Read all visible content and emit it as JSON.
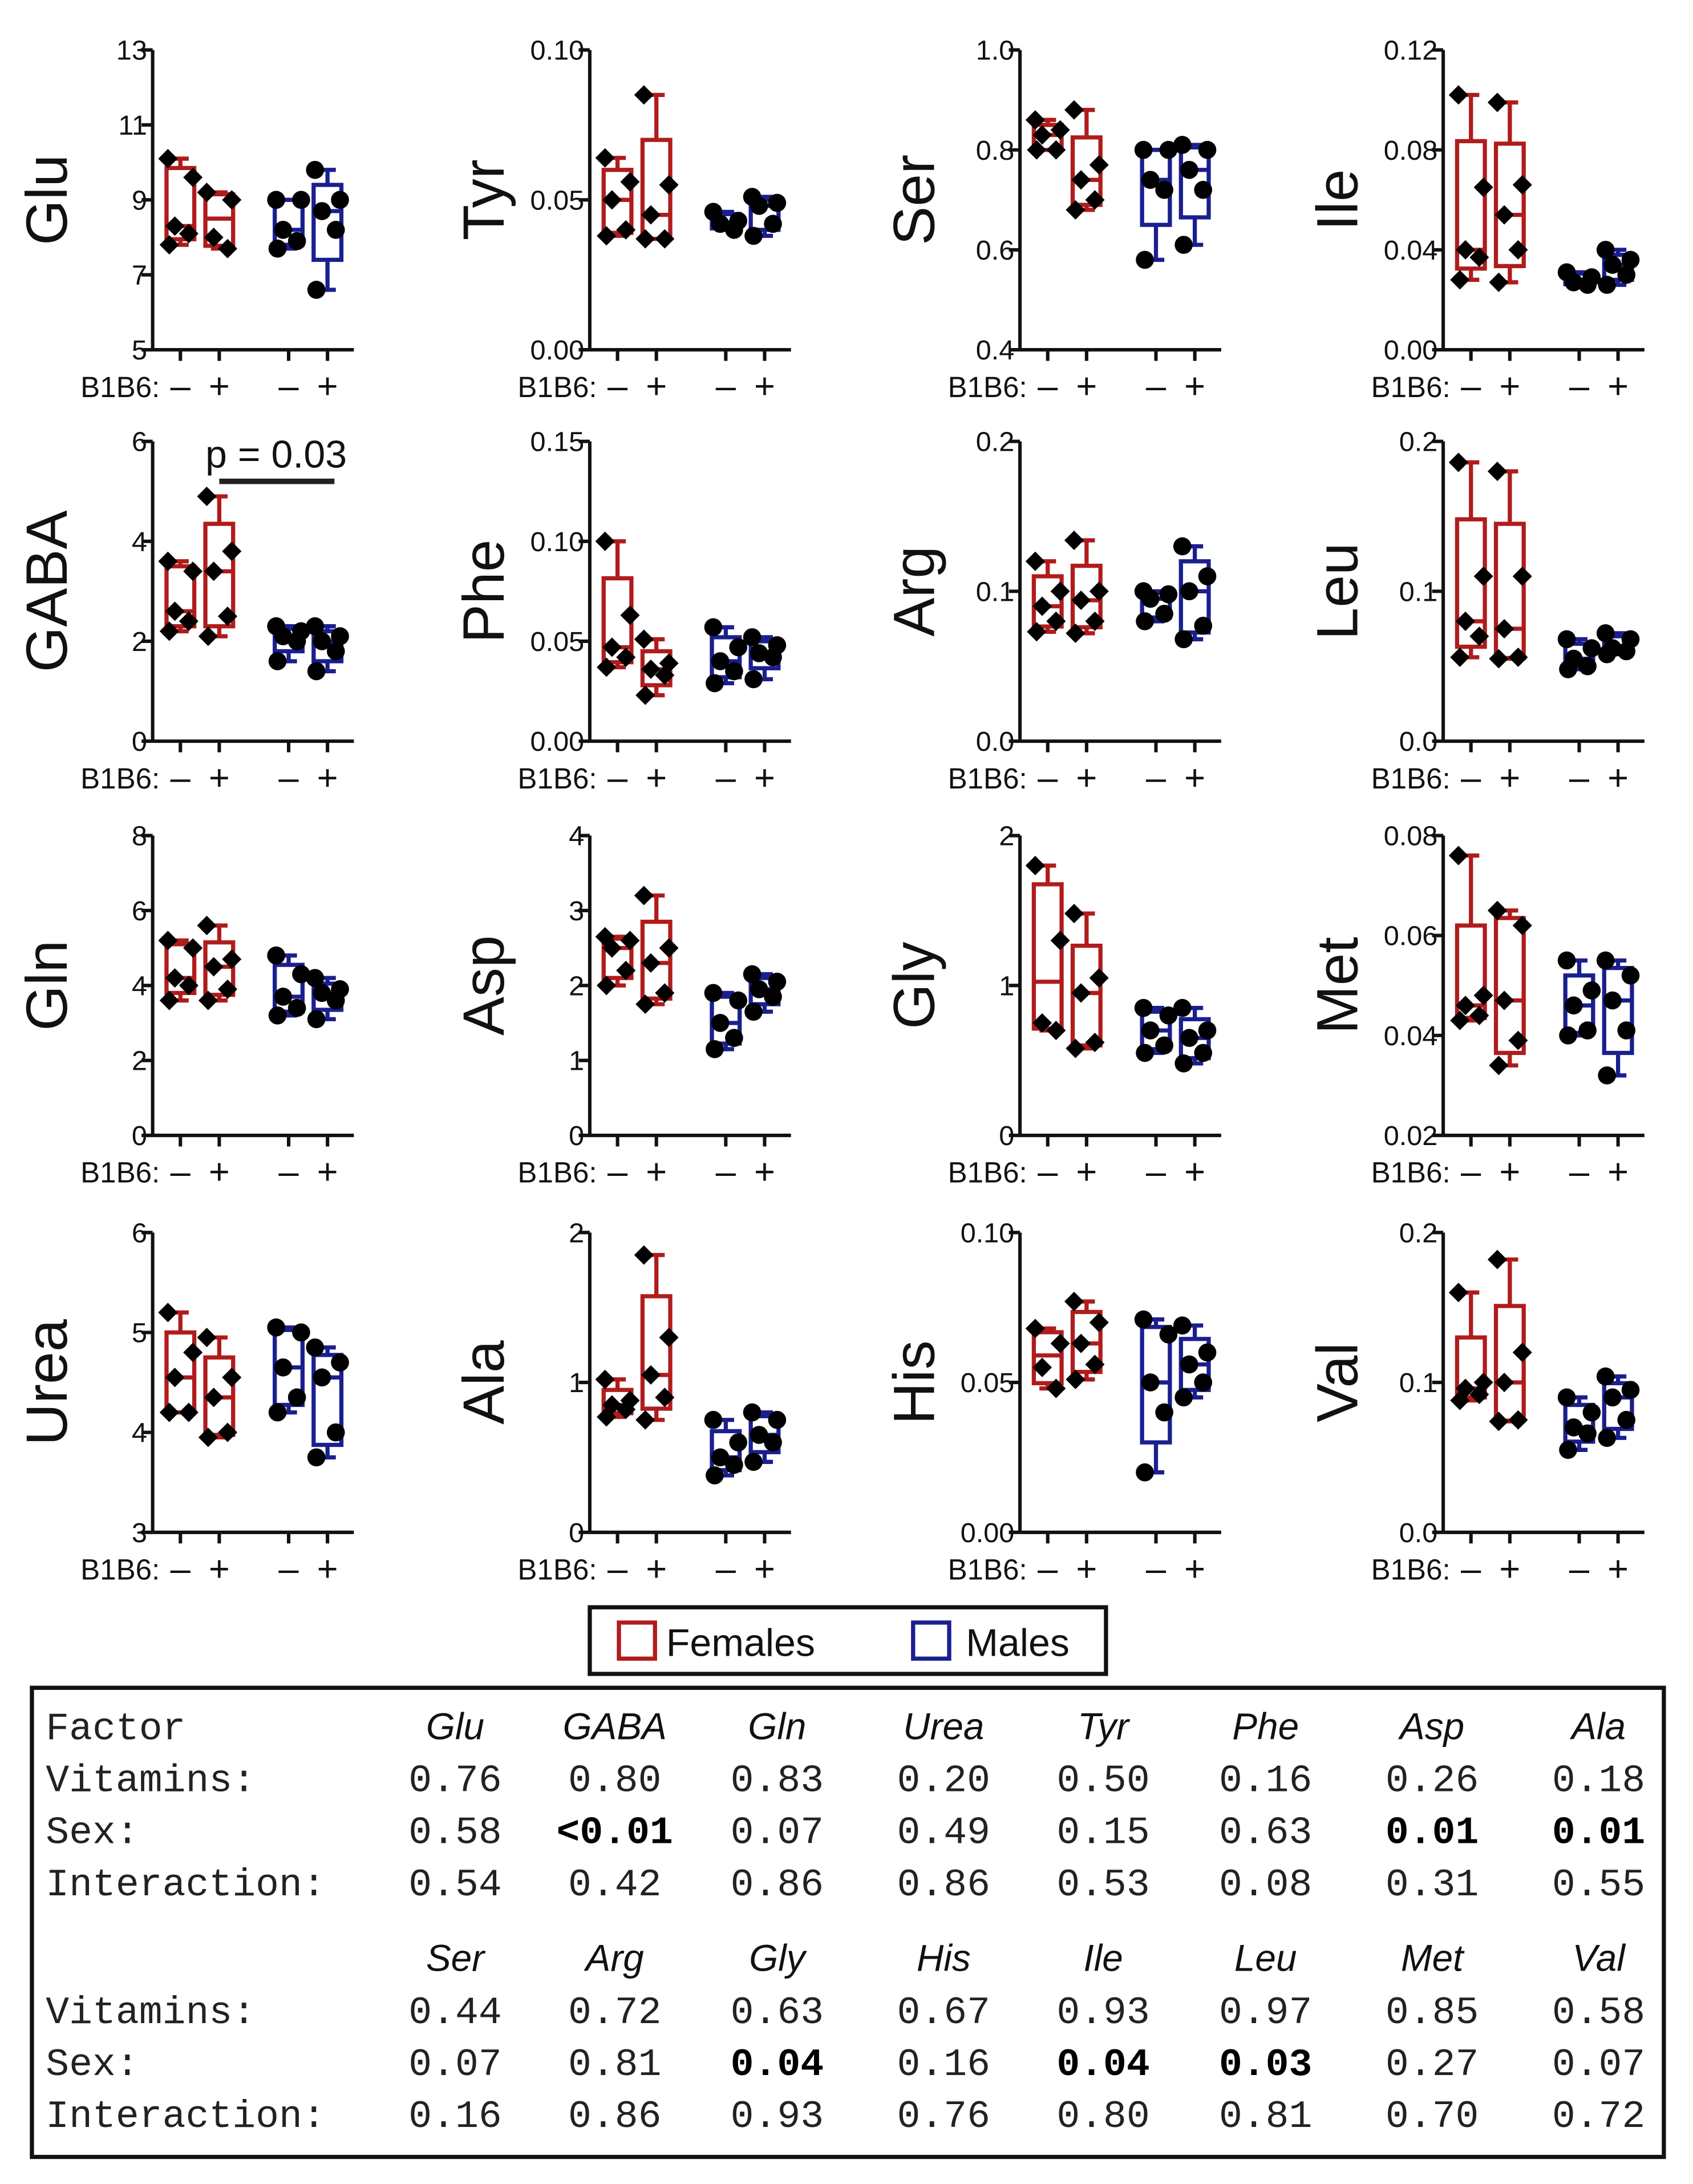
{
  "chart_data": {
    "type": "box",
    "group_label": "B1B6:",
    "group_ticks": [
      "–",
      "+",
      "–",
      "+"
    ],
    "colors": {
      "Females": "#b01c1c",
      "Males": "#1a1f8f"
    },
    "legend": {
      "entries": [
        "Females",
        "Males"
      ],
      "placement": "bottom-center"
    },
    "panels": [
      {
        "name": "Glu",
        "ylim": [
          5,
          13
        ],
        "ticks": [
          "5",
          "7",
          "9",
          "11",
          "13"
        ],
        "groups": [
          [
            10.1,
            9.6,
            8.3,
            8.1,
            7.8
          ],
          [
            9.2,
            9.0,
            8.0,
            7.7
          ],
          [
            9.0,
            9.0,
            8.2,
            7.9,
            7.7
          ],
          [
            9.8,
            9.0,
            8.7,
            8.2,
            6.6
          ]
        ]
      },
      {
        "name": "Tyr",
        "ylim": [
          0,
          0.1
        ],
        "ticks": [
          "0.00",
          "0.05",
          "0.10"
        ],
        "groups": [
          [
            0.064,
            0.056,
            0.05,
            0.04,
            0.038
          ],
          [
            0.085,
            0.055,
            0.045,
            0.037,
            0.037
          ],
          [
            0.046,
            0.043,
            0.042,
            0.04
          ],
          [
            0.051,
            0.049,
            0.048,
            0.042,
            0.038
          ]
        ]
      },
      {
        "name": "Ser",
        "ylim": [
          0.4,
          1.0
        ],
        "ticks": [
          "0.4",
          "0.6",
          "0.8",
          "1.0"
        ],
        "groups": [
          [
            0.86,
            0.84,
            0.83,
            0.8,
            0.8
          ],
          [
            0.88,
            0.77,
            0.74,
            0.7,
            0.68
          ],
          [
            0.8,
            0.8,
            0.74,
            0.72,
            0.58
          ],
          [
            0.81,
            0.8,
            0.76,
            0.72,
            0.61
          ]
        ]
      },
      {
        "name": "Ile",
        "ylim": [
          0,
          0.12
        ],
        "ticks": [
          "0.00",
          "0.04",
          "0.08",
          "0.12"
        ],
        "groups": [
          [
            0.102,
            0.065,
            0.04,
            0.037,
            0.028
          ],
          [
            0.099,
            0.066,
            0.054,
            0.04,
            0.027
          ],
          [
            0.031,
            0.029,
            0.027,
            0.026
          ],
          [
            0.04,
            0.036,
            0.034,
            0.03,
            0.026
          ]
        ]
      },
      {
        "name": "GABA",
        "ylim": [
          0,
          6
        ],
        "ticks": [
          "0",
          "2",
          "4",
          "6"
        ],
        "groups": [
          [
            3.6,
            3.4,
            2.6,
            2.4,
            2.2
          ],
          [
            4.9,
            3.8,
            3.4,
            2.5,
            2.1
          ],
          [
            2.3,
            2.2,
            2.1,
            2.0,
            1.6
          ],
          [
            2.3,
            2.1,
            2.0,
            1.8,
            1.4
          ]
        ],
        "annotation": {
          "text": "p = 0.03",
          "from_group": 1,
          "to_group": 3,
          "y": 5.2
        }
      },
      {
        "name": "Phe",
        "ylim": [
          0,
          0.15
        ],
        "ticks": [
          "0.00",
          "0.05",
          "0.10",
          "0.15"
        ],
        "groups": [
          [
            0.1,
            0.063,
            0.047,
            0.042,
            0.037
          ],
          [
            0.051,
            0.039,
            0.036,
            0.033,
            0.023
          ],
          [
            0.057,
            0.047,
            0.04,
            0.035,
            0.029
          ],
          [
            0.052,
            0.048,
            0.044,
            0.042,
            0.031
          ]
        ]
      },
      {
        "name": "Arg",
        "ylim": [
          0,
          0.2
        ],
        "ticks": [
          "0.0",
          "0.1",
          "0.2"
        ],
        "groups": [
          [
            0.12,
            0.1,
            0.09,
            0.08,
            0.073
          ],
          [
            0.134,
            0.1,
            0.094,
            0.08,
            0.072
          ],
          [
            0.1,
            0.098,
            0.095,
            0.085,
            0.08
          ],
          [
            0.13,
            0.11,
            0.1,
            0.077,
            0.068
          ]
        ]
      },
      {
        "name": "Leu",
        "ylim": [
          0,
          0.2
        ],
        "ticks": [
          "0.0",
          "0.1",
          "0.2"
        ],
        "groups": [
          [
            0.186,
            0.11,
            0.08,
            0.07,
            0.056
          ],
          [
            0.18,
            0.11,
            0.075,
            0.056,
            0.055
          ],
          [
            0.068,
            0.062,
            0.055,
            0.05,
            0.048
          ],
          [
            0.072,
            0.068,
            0.062,
            0.06,
            0.058
          ]
        ]
      },
      {
        "name": "Gln",
        "ylim": [
          0,
          8
        ],
        "ticks": [
          "0",
          "2",
          "4",
          "6",
          "8"
        ],
        "groups": [
          [
            5.2,
            5.0,
            4.2,
            4.0,
            3.6
          ],
          [
            5.6,
            4.7,
            4.5,
            3.9,
            3.6
          ],
          [
            4.8,
            4.3,
            3.7,
            3.4,
            3.2
          ],
          [
            4.2,
            3.9,
            3.8,
            3.6,
            3.1
          ]
        ]
      },
      {
        "name": "Asp",
        "ylim": [
          0,
          4
        ],
        "ticks": [
          "0",
          "1",
          "2",
          "3",
          "4"
        ],
        "groups": [
          [
            2.65,
            2.6,
            2.5,
            2.2,
            2.0
          ],
          [
            3.2,
            2.5,
            2.3,
            1.9,
            1.75
          ],
          [
            1.9,
            1.8,
            1.5,
            1.3,
            1.15
          ],
          [
            2.15,
            2.05,
            1.95,
            1.85,
            1.65
          ]
        ]
      },
      {
        "name": "Gly",
        "ylim": [
          0,
          2
        ],
        "ticks": [
          "0",
          "1",
          "2"
        ],
        "groups": [
          [
            1.8,
            1.3,
            0.75,
            0.7
          ],
          [
            1.48,
            1.05,
            0.95,
            0.62,
            0.58
          ],
          [
            0.85,
            0.8,
            0.7,
            0.6,
            0.55
          ],
          [
            0.85,
            0.7,
            0.65,
            0.55,
            0.48
          ]
        ]
      },
      {
        "name": "Met",
        "ylim": [
          0.02,
          0.08
        ],
        "ticks": [
          "0.02",
          "0.04",
          "0.06",
          "0.08"
        ],
        "groups": [
          [
            0.076,
            0.048,
            0.046,
            0.044,
            0.043
          ],
          [
            0.065,
            0.062,
            0.047,
            0.039,
            0.034
          ],
          [
            0.055,
            0.049,
            0.046,
            0.041,
            0.04
          ],
          [
            0.055,
            0.052,
            0.047,
            0.041,
            0.032
          ]
        ]
      },
      {
        "name": "Urea",
        "ylim": [
          3,
          6
        ],
        "ticks": [
          "3",
          "4",
          "5",
          "6"
        ],
        "groups": [
          [
            5.2,
            4.8,
            4.55,
            4.2,
            4.2
          ],
          [
            4.95,
            4.55,
            4.35,
            4.0,
            3.95
          ],
          [
            5.05,
            5.0,
            4.65,
            4.35,
            4.2
          ],
          [
            4.85,
            4.7,
            4.55,
            4.0,
            3.75
          ]
        ]
      },
      {
        "name": "Ala",
        "ylim": [
          0,
          2
        ],
        "ticks": [
          "0",
          "1",
          "2"
        ],
        "groups": [
          [
            1.02,
            0.88,
            0.85,
            0.82,
            0.77
          ],
          [
            1.85,
            1.3,
            1.05,
            0.9,
            0.75
          ],
          [
            0.75,
            0.6,
            0.5,
            0.45,
            0.38
          ],
          [
            0.8,
            0.75,
            0.65,
            0.6,
            0.47
          ]
        ]
      },
      {
        "name": "His",
        "ylim": [
          0,
          0.1
        ],
        "ticks": [
          "0.00",
          "0.05",
          "0.10"
        ],
        "groups": [
          [
            0.068,
            0.063,
            0.055,
            0.048
          ],
          [
            0.077,
            0.07,
            0.063,
            0.056,
            0.051
          ],
          [
            0.071,
            0.066,
            0.05,
            0.04,
            0.02
          ],
          [
            0.069,
            0.06,
            0.056,
            0.05,
            0.045
          ]
        ]
      },
      {
        "name": "Val",
        "ylim": [
          0,
          0.2
        ],
        "ticks": [
          "0.0",
          "0.1",
          "0.2"
        ],
        "groups": [
          [
            0.16,
            0.1,
            0.096,
            0.092,
            0.088
          ],
          [
            0.182,
            0.12,
            0.1,
            0.075,
            0.074
          ],
          [
            0.09,
            0.08,
            0.07,
            0.066,
            0.055
          ],
          [
            0.104,
            0.095,
            0.09,
            0.075,
            0.063
          ]
        ]
      }
    ]
  },
  "table": {
    "factor_label": "Factor",
    "row_labels": [
      "Vitamins:",
      "Sex:",
      "Interaction:"
    ],
    "blocks": [
      {
        "headers": [
          "Glu",
          "GABA",
          "Gln",
          "Urea",
          "Tyr",
          "Phe",
          "Asp",
          "Ala"
        ],
        "rows": [
          [
            "0.76",
            "0.80",
            "0.83",
            "0.20",
            "0.50",
            "0.16",
            "0.26",
            "0.18"
          ],
          [
            "0.58",
            "<0.01",
            "0.07",
            "0.49",
            "0.15",
            "0.63",
            "0.01",
            "0.01"
          ],
          [
            "0.54",
            "0.42",
            "0.86",
            "0.86",
            "0.53",
            "0.08",
            "0.31",
            "0.55"
          ]
        ],
        "bold": [
          [
            1,
            1
          ],
          [
            1,
            6
          ],
          [
            1,
            7
          ]
        ]
      },
      {
        "headers": [
          "Ser",
          "Arg",
          "Gly",
          "His",
          "Ile",
          "Leu",
          "Met",
          "Val"
        ],
        "rows": [
          [
            "0.44",
            "0.72",
            "0.63",
            "0.67",
            "0.93",
            "0.97",
            "0.85",
            "0.58"
          ],
          [
            "0.07",
            "0.81",
            "0.04",
            "0.16",
            "0.04",
            "0.03",
            "0.27",
            "0.07"
          ],
          [
            "0.16",
            "0.86",
            "0.93",
            "0.76",
            "0.80",
            "0.81",
            "0.70",
            "0.72"
          ]
        ],
        "bold": [
          [
            1,
            2
          ],
          [
            1,
            4
          ],
          [
            1,
            5
          ]
        ]
      }
    ]
  }
}
